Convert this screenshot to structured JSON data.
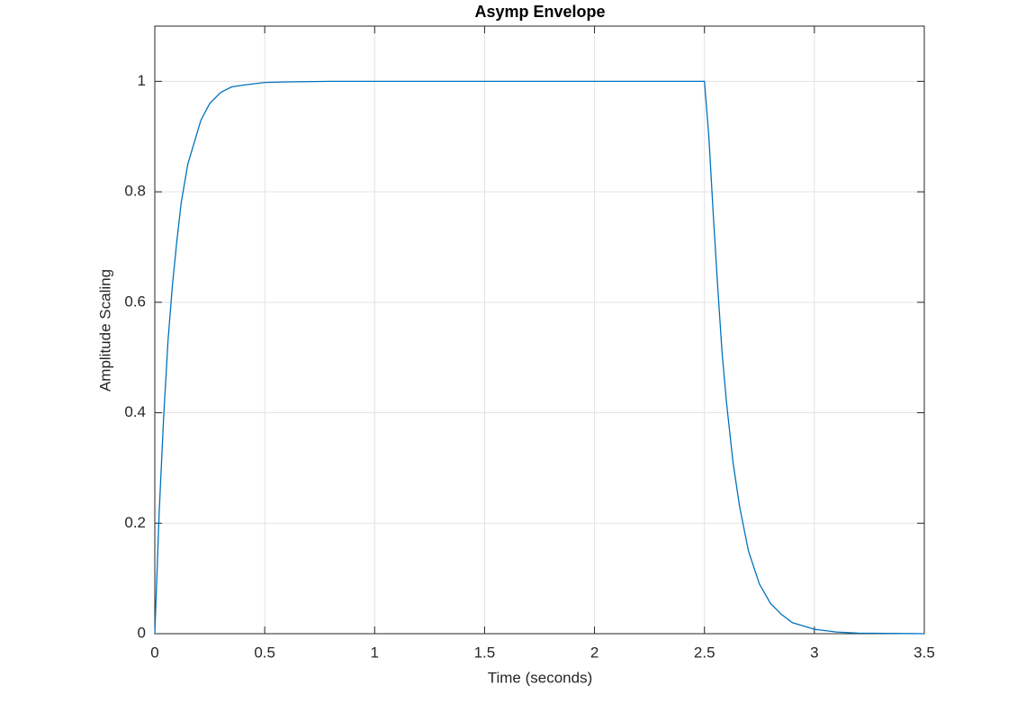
{
  "chart_data": {
    "type": "line",
    "title": "Asymp Envelope",
    "x_label": "Time (seconds)",
    "y_label": "Amplitude Scaling",
    "x": [
      0,
      0.02,
      0.04,
      0.06,
      0.08,
      0.1,
      0.12,
      0.15,
      0.18,
      0.21,
      0.25,
      0.3,
      0.35,
      0.4,
      0.5,
      0.6,
      0.8,
      2.5,
      2.52,
      2.54,
      2.56,
      2.58,
      2.6,
      2.63,
      2.66,
      2.7,
      2.75,
      2.8,
      2.85,
      2.9,
      3.0,
      3.1,
      3.2,
      3.5
    ],
    "series": [
      {
        "color": "#0072bd",
        "values": [
          0,
          0.22,
          0.39,
          0.53,
          0.63,
          0.71,
          0.78,
          0.85,
          0.89,
          0.93,
          0.96,
          0.98,
          0.99,
          0.993,
          0.998,
          0.999,
          1,
          1,
          0.9,
          0.76,
          0.63,
          0.51,
          0.42,
          0.31,
          0.23,
          0.15,
          0.09,
          0.055,
          0.035,
          0.02,
          0.008,
          0.003,
          0.001,
          0
        ]
      }
    ],
    "xlim": [
      0,
      3.5
    ],
    "xticks": [
      0,
      0.5,
      1,
      1.5,
      2,
      2.5,
      3,
      3.5
    ],
    "ylim": [
      0,
      1.1
    ],
    "yticks": [
      0,
      0.2,
      0.4,
      0.6,
      0.8,
      1
    ],
    "grid": true
  }
}
